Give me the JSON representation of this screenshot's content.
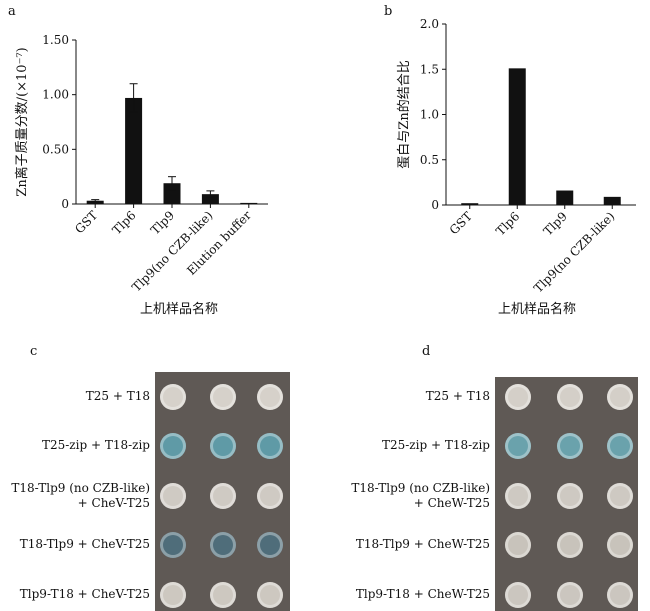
{
  "panels": {
    "a": {
      "letter": "a",
      "ylabel": "Zn离子质量分数/(×10⁻⁷)",
      "xlabel": "上机样品名称",
      "chart_data": {
        "type": "bar",
        "categories": [
          "GST",
          "Tlp6",
          "Tlp9",
          "Tlp9(no CZB-like)",
          "Elution buffer"
        ],
        "values": [
          0.03,
          0.97,
          0.19,
          0.09,
          0.01
        ],
        "errors": [
          0.01,
          0.13,
          0.06,
          0.03,
          0.0
        ],
        "ylim": [
          0,
          1.5
        ],
        "yticks": [
          "0",
          "0.50",
          "1.00",
          "1.50"
        ]
      }
    },
    "b": {
      "letter": "b",
      "ylabel": "蛋白与Zn的结合比",
      "xlabel": "上机样品名称",
      "chart_data": {
        "type": "bar",
        "categories": [
          "GST",
          "Tlp6",
          "Tlp9",
          "Tlp9(no CZB-like)"
        ],
        "values": [
          0.02,
          1.51,
          0.16,
          0.09
        ],
        "ylim": [
          0,
          2.0
        ],
        "yticks": [
          "0",
          "0.5",
          "1.0",
          "1.5",
          "2.0"
        ]
      }
    },
    "c": {
      "letter": "c",
      "rows": [
        {
          "label": "T25 + T18",
          "color": "#d6d1ca"
        },
        {
          "label": "T25-zip + T18-zip",
          "color": "#5f9aa6"
        },
        {
          "label": "T18-Tlp9 (no CZB-like)\n+ CheV-T25",
          "color": "#cfcac3"
        },
        {
          "label": "T18-Tlp9 + CheV-T25",
          "color": "#4f6d7a"
        },
        {
          "label": "Tlp9-T18 + CheV-T25",
          "color": "#cdc8c0"
        }
      ]
    },
    "d": {
      "letter": "d",
      "rows": [
        {
          "label": "T25 + T18",
          "color": "#d4cfc8"
        },
        {
          "label": "T25-zip + T18-zip",
          "color": "#6aa2ac"
        },
        {
          "label": "T18-Tlp9 (no CZB-like)\n+ CheW-T25",
          "color": "#cec9c2"
        },
        {
          "label": "T18-Tlp9 + CheW-T25",
          "color": "#c8c3bb"
        },
        {
          "label": "Tlp9-T18 + CheW-T25",
          "color": "#cbc6bf"
        }
      ]
    }
  }
}
